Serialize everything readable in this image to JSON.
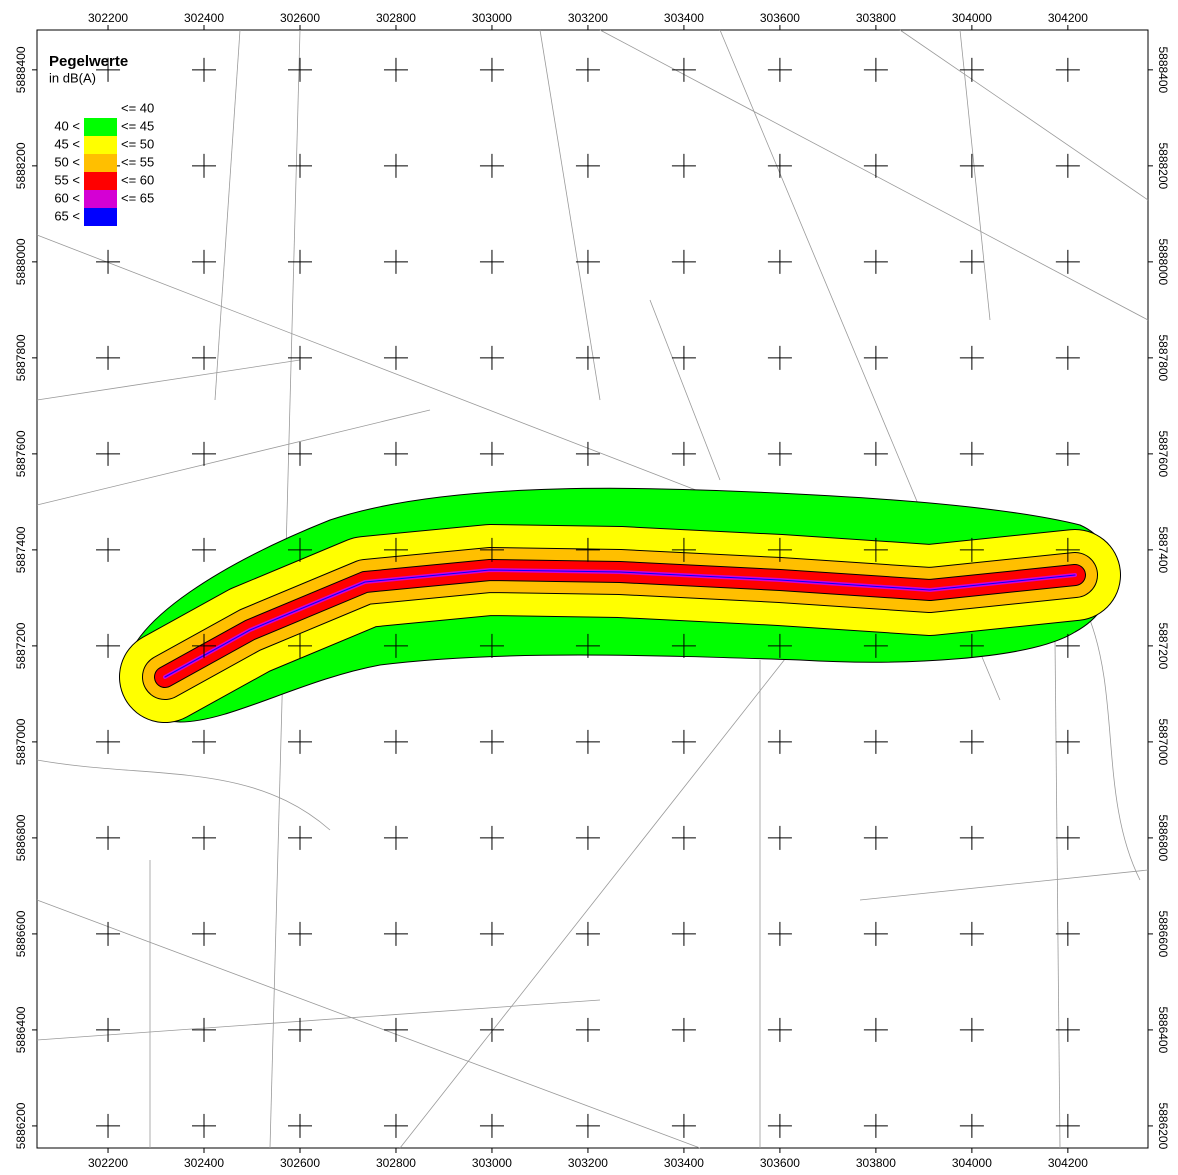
{
  "legend": {
    "title": "Pegelwerte",
    "unit": "in dB(A)",
    "classes": [
      {
        "to": "<= 40"
      },
      {
        "from": "40 <",
        "to": "<= 45",
        "color": "#00ff00"
      },
      {
        "from": "45 <",
        "to": "<= 50",
        "color": "#ffff00"
      },
      {
        "from": "50 <",
        "to": "<= 55",
        "color": "#ffbf00"
      },
      {
        "from": "55 <",
        "to": "<= 60",
        "color": "#ff0000"
      },
      {
        "from": "60 <",
        "to": "<= 65",
        "color": "#d400d4"
      },
      {
        "from": "65 <",
        "color": "#0000ff"
      }
    ]
  },
  "map": {
    "xlim": [
      302052,
      304367
    ],
    "ylim": [
      5886154,
      5888483
    ],
    "xticks": [
      302200,
      302400,
      302600,
      302800,
      303000,
      303200,
      303400,
      303600,
      303800,
      304000,
      304200
    ],
    "yticks": [
      5886200,
      5886400,
      5886600,
      5886800,
      5887000,
      5887200,
      5887400,
      5887600,
      5887800,
      5888000,
      5888200,
      5888400
    ]
  }
}
